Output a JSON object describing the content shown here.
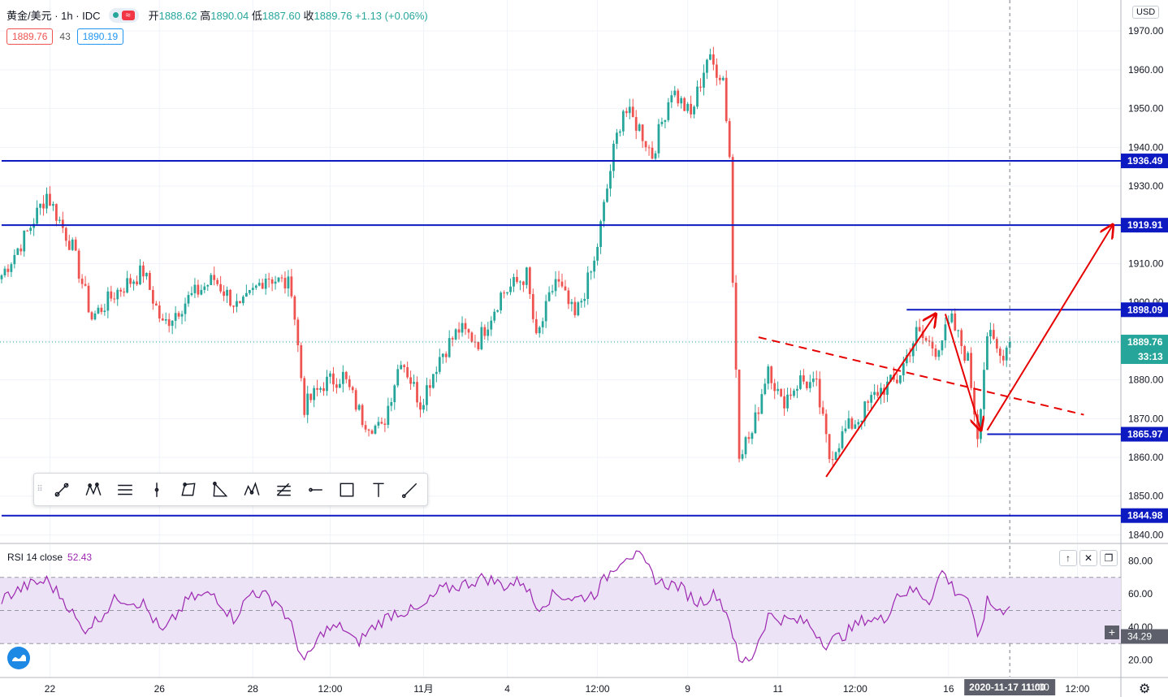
{
  "header": {
    "symbol": "黄金/美元 · 1h · IDC",
    "open_label": "开",
    "open": "1888.62",
    "high_label": "高",
    "high": "1890.04",
    "low_label": "低",
    "low": "1887.60",
    "close_label": "收",
    "close": "1889.76",
    "change": "+1.13 (+0.06%)",
    "sell_price": "1889.76",
    "spread": "43",
    "buy_price": "1890.19",
    "currency": "USD"
  },
  "colors": {
    "up": "#26a69a",
    "down": "#ef5350",
    "level_line": "#0d1ac2",
    "annotation": "#e60000",
    "rsi_line": "#9c27b0",
    "rsi_band": "#ede3f7"
  },
  "chart_data": [
    {
      "type": "candlestick",
      "title": "黄金/美元 · 1h · IDC",
      "ylim": [
        1838,
        1978
      ],
      "y_ticks": [
        1840,
        1850,
        1860,
        1870,
        1880,
        1890,
        1900,
        1910,
        1920,
        1930,
        1940,
        1950,
        1960,
        1970
      ],
      "y_tick_labels": [
        "1840.00",
        "1850.00",
        "1860.00",
        "1870.00",
        "1880.00",
        "1890.00",
        "1900.00",
        "1910.00",
        "1920.00",
        "1930.00",
        "1940.00",
        "1950.00",
        "1960.00",
        "1970.00"
      ],
      "x_tick_labels": [
        "22",
        "26",
        "28",
        "12:00",
        "11月",
        "4",
        "12:00",
        "9",
        "11",
        "12:00",
        "16",
        "12:00"
      ],
      "x_tick_index": [
        15,
        49,
        78,
        102,
        131,
        157,
        185,
        213,
        241,
        265,
        294,
        334
      ],
      "crosshair_time_label": "2020-11-17 11:00",
      "crosshair_time_extra": "11:00",
      "current_price": 1889.76,
      "current_price_label": "1889.76",
      "countdown_label": "33:13",
      "horizontal_levels": [
        {
          "value": 1936.49,
          "label": "1936.49",
          "x_start_index": 0
        },
        {
          "value": 1919.91,
          "label": "1919.91",
          "x_start_index": 0
        },
        {
          "value": 1898.09,
          "label": "1898.09",
          "x_start_index": 281
        },
        {
          "value": 1865.97,
          "label": "1865.97",
          "x_start_index": 306
        },
        {
          "value": 1844.98,
          "label": "1844.98",
          "x_start_index": 0
        }
      ],
      "approx_close_path": [
        {
          "i": 0,
          "c": 1907
        },
        {
          "i": 8,
          "c": 1918
        },
        {
          "i": 14,
          "c": 1928
        },
        {
          "i": 22,
          "c": 1914
        },
        {
          "i": 28,
          "c": 1896
        },
        {
          "i": 36,
          "c": 1903
        },
        {
          "i": 44,
          "c": 1908
        },
        {
          "i": 50,
          "c": 1894
        },
        {
          "i": 58,
          "c": 1901
        },
        {
          "i": 66,
          "c": 1906
        },
        {
          "i": 74,
          "c": 1898
        },
        {
          "i": 82,
          "c": 1907
        },
        {
          "i": 90,
          "c": 1904
        },
        {
          "i": 94,
          "c": 1873
        },
        {
          "i": 100,
          "c": 1879
        },
        {
          "i": 106,
          "c": 1881
        },
        {
          "i": 112,
          "c": 1870
        },
        {
          "i": 118,
          "c": 1867
        },
        {
          "i": 124,
          "c": 1886
        },
        {
          "i": 130,
          "c": 1874
        },
        {
          "i": 136,
          "c": 1886
        },
        {
          "i": 142,
          "c": 1893
        },
        {
          "i": 148,
          "c": 1890
        },
        {
          "i": 155,
          "c": 1902
        },
        {
          "i": 163,
          "c": 1907
        },
        {
          "i": 166,
          "c": 1890
        },
        {
          "i": 172,
          "c": 1906
        },
        {
          "i": 178,
          "c": 1896
        },
        {
          "i": 184,
          "c": 1910
        },
        {
          "i": 190,
          "c": 1939
        },
        {
          "i": 193,
          "c": 1950
        },
        {
          "i": 198,
          "c": 1945
        },
        {
          "i": 202,
          "c": 1938
        },
        {
          "i": 208,
          "c": 1955
        },
        {
          "i": 214,
          "c": 1948
        },
        {
          "i": 219,
          "c": 1963
        },
        {
          "i": 224,
          "c": 1958
        },
        {
          "i": 226,
          "c": 1938
        },
        {
          "i": 227,
          "c": 1905
        },
        {
          "i": 229,
          "c": 1862
        },
        {
          "i": 233,
          "c": 1866
        },
        {
          "i": 238,
          "c": 1884
        },
        {
          "i": 242,
          "c": 1874
        },
        {
          "i": 248,
          "c": 1880
        },
        {
          "i": 253,
          "c": 1878
        },
        {
          "i": 257,
          "c": 1860
        },
        {
          "i": 262,
          "c": 1867
        },
        {
          "i": 266,
          "c": 1870
        },
        {
          "i": 272,
          "c": 1877
        },
        {
          "i": 278,
          "c": 1880
        },
        {
          "i": 284,
          "c": 1892
        },
        {
          "i": 290,
          "c": 1888
        },
        {
          "i": 295,
          "c": 1895
        },
        {
          "i": 300,
          "c": 1885
        },
        {
          "i": 303,
          "c": 1866
        },
        {
          "i": 306,
          "c": 1892
        },
        {
          "i": 310,
          "c": 1886
        },
        {
          "i": 313,
          "c": 1889.76
        }
      ],
      "annotations": [
        {
          "type": "dashed-trendline",
          "from": {
            "i": 235,
            "y": 1891
          },
          "to": {
            "i": 336,
            "y": 1871
          }
        },
        {
          "type": "arrow",
          "from": {
            "i": 256,
            "y": 1855
          },
          "to": {
            "i": 290,
            "y": 1897
          }
        },
        {
          "type": "arrow",
          "from": {
            "i": 293,
            "y": 1897
          },
          "to": {
            "i": 304,
            "y": 1867
          }
        },
        {
          "type": "arrow",
          "from": {
            "i": 306,
            "y": 1867
          },
          "to": {
            "i": 345,
            "y": 1920
          }
        }
      ]
    },
    {
      "type": "line",
      "title": "RSI 14 close",
      "value_label": "52.43",
      "ylim": [
        10,
        90
      ],
      "y_ticks": [
        20,
        40,
        60,
        80
      ],
      "y_tick_labels": [
        "20.00",
        "40.00",
        "60.00",
        "80.00"
      ],
      "band": [
        30,
        70
      ],
      "crosshair_value_label": "34.29",
      "approx_path": [
        {
          "i": 0,
          "v": 57
        },
        {
          "i": 8,
          "v": 65
        },
        {
          "i": 14,
          "v": 68
        },
        {
          "i": 20,
          "v": 55
        },
        {
          "i": 25,
          "v": 38
        },
        {
          "i": 30,
          "v": 45
        },
        {
          "i": 36,
          "v": 58
        },
        {
          "i": 44,
          "v": 54
        },
        {
          "i": 50,
          "v": 36
        },
        {
          "i": 58,
          "v": 57
        },
        {
          "i": 66,
          "v": 60
        },
        {
          "i": 72,
          "v": 45
        },
        {
          "i": 78,
          "v": 62
        },
        {
          "i": 86,
          "v": 55
        },
        {
          "i": 90,
          "v": 40
        },
        {
          "i": 94,
          "v": 18
        },
        {
          "i": 100,
          "v": 38
        },
        {
          "i": 106,
          "v": 40
        },
        {
          "i": 110,
          "v": 30
        },
        {
          "i": 116,
          "v": 41
        },
        {
          "i": 122,
          "v": 49
        },
        {
          "i": 130,
          "v": 50
        },
        {
          "i": 136,
          "v": 62
        },
        {
          "i": 144,
          "v": 66
        },
        {
          "i": 150,
          "v": 70
        },
        {
          "i": 156,
          "v": 65
        },
        {
          "i": 162,
          "v": 68
        },
        {
          "i": 166,
          "v": 52
        },
        {
          "i": 172,
          "v": 60
        },
        {
          "i": 178,
          "v": 57
        },
        {
          "i": 184,
          "v": 60
        },
        {
          "i": 190,
          "v": 76
        },
        {
          "i": 194,
          "v": 84
        },
        {
          "i": 198,
          "v": 82
        },
        {
          "i": 204,
          "v": 67
        },
        {
          "i": 210,
          "v": 65
        },
        {
          "i": 216,
          "v": 55
        },
        {
          "i": 222,
          "v": 60
        },
        {
          "i": 226,
          "v": 45
        },
        {
          "i": 229,
          "v": 18
        },
        {
          "i": 233,
          "v": 22
        },
        {
          "i": 238,
          "v": 47
        },
        {
          "i": 244,
          "v": 44
        },
        {
          "i": 250,
          "v": 43
        },
        {
          "i": 256,
          "v": 30
        },
        {
          "i": 262,
          "v": 36
        },
        {
          "i": 268,
          "v": 45
        },
        {
          "i": 274,
          "v": 44
        },
        {
          "i": 278,
          "v": 60
        },
        {
          "i": 284,
          "v": 62
        },
        {
          "i": 288,
          "v": 56
        },
        {
          "i": 292,
          "v": 74
        },
        {
          "i": 296,
          "v": 62
        },
        {
          "i": 300,
          "v": 58
        },
        {
          "i": 303,
          "v": 32
        },
        {
          "i": 306,
          "v": 55
        },
        {
          "i": 310,
          "v": 50
        },
        {
          "i": 313,
          "v": 52.43
        }
      ]
    }
  ],
  "toolbar": {
    "tools": [
      "trend-line-tool",
      "xabcd-pattern-tool",
      "parallel-channel-tool",
      "vertical-line-tool",
      "abcd-pattern-tool",
      "triangle-tool",
      "head-shoulders-tool",
      "fib-retracement-tool",
      "horizontal-ray-tool",
      "rectangle-tool",
      "text-tool",
      "ray-tool"
    ]
  },
  "pane_buttons": {
    "up": "↑",
    "close": "✕",
    "maximize": "❐"
  },
  "icons": {
    "settings": "gear-icon",
    "logo": "tradingview-logo-icon",
    "add": "plus-icon"
  }
}
